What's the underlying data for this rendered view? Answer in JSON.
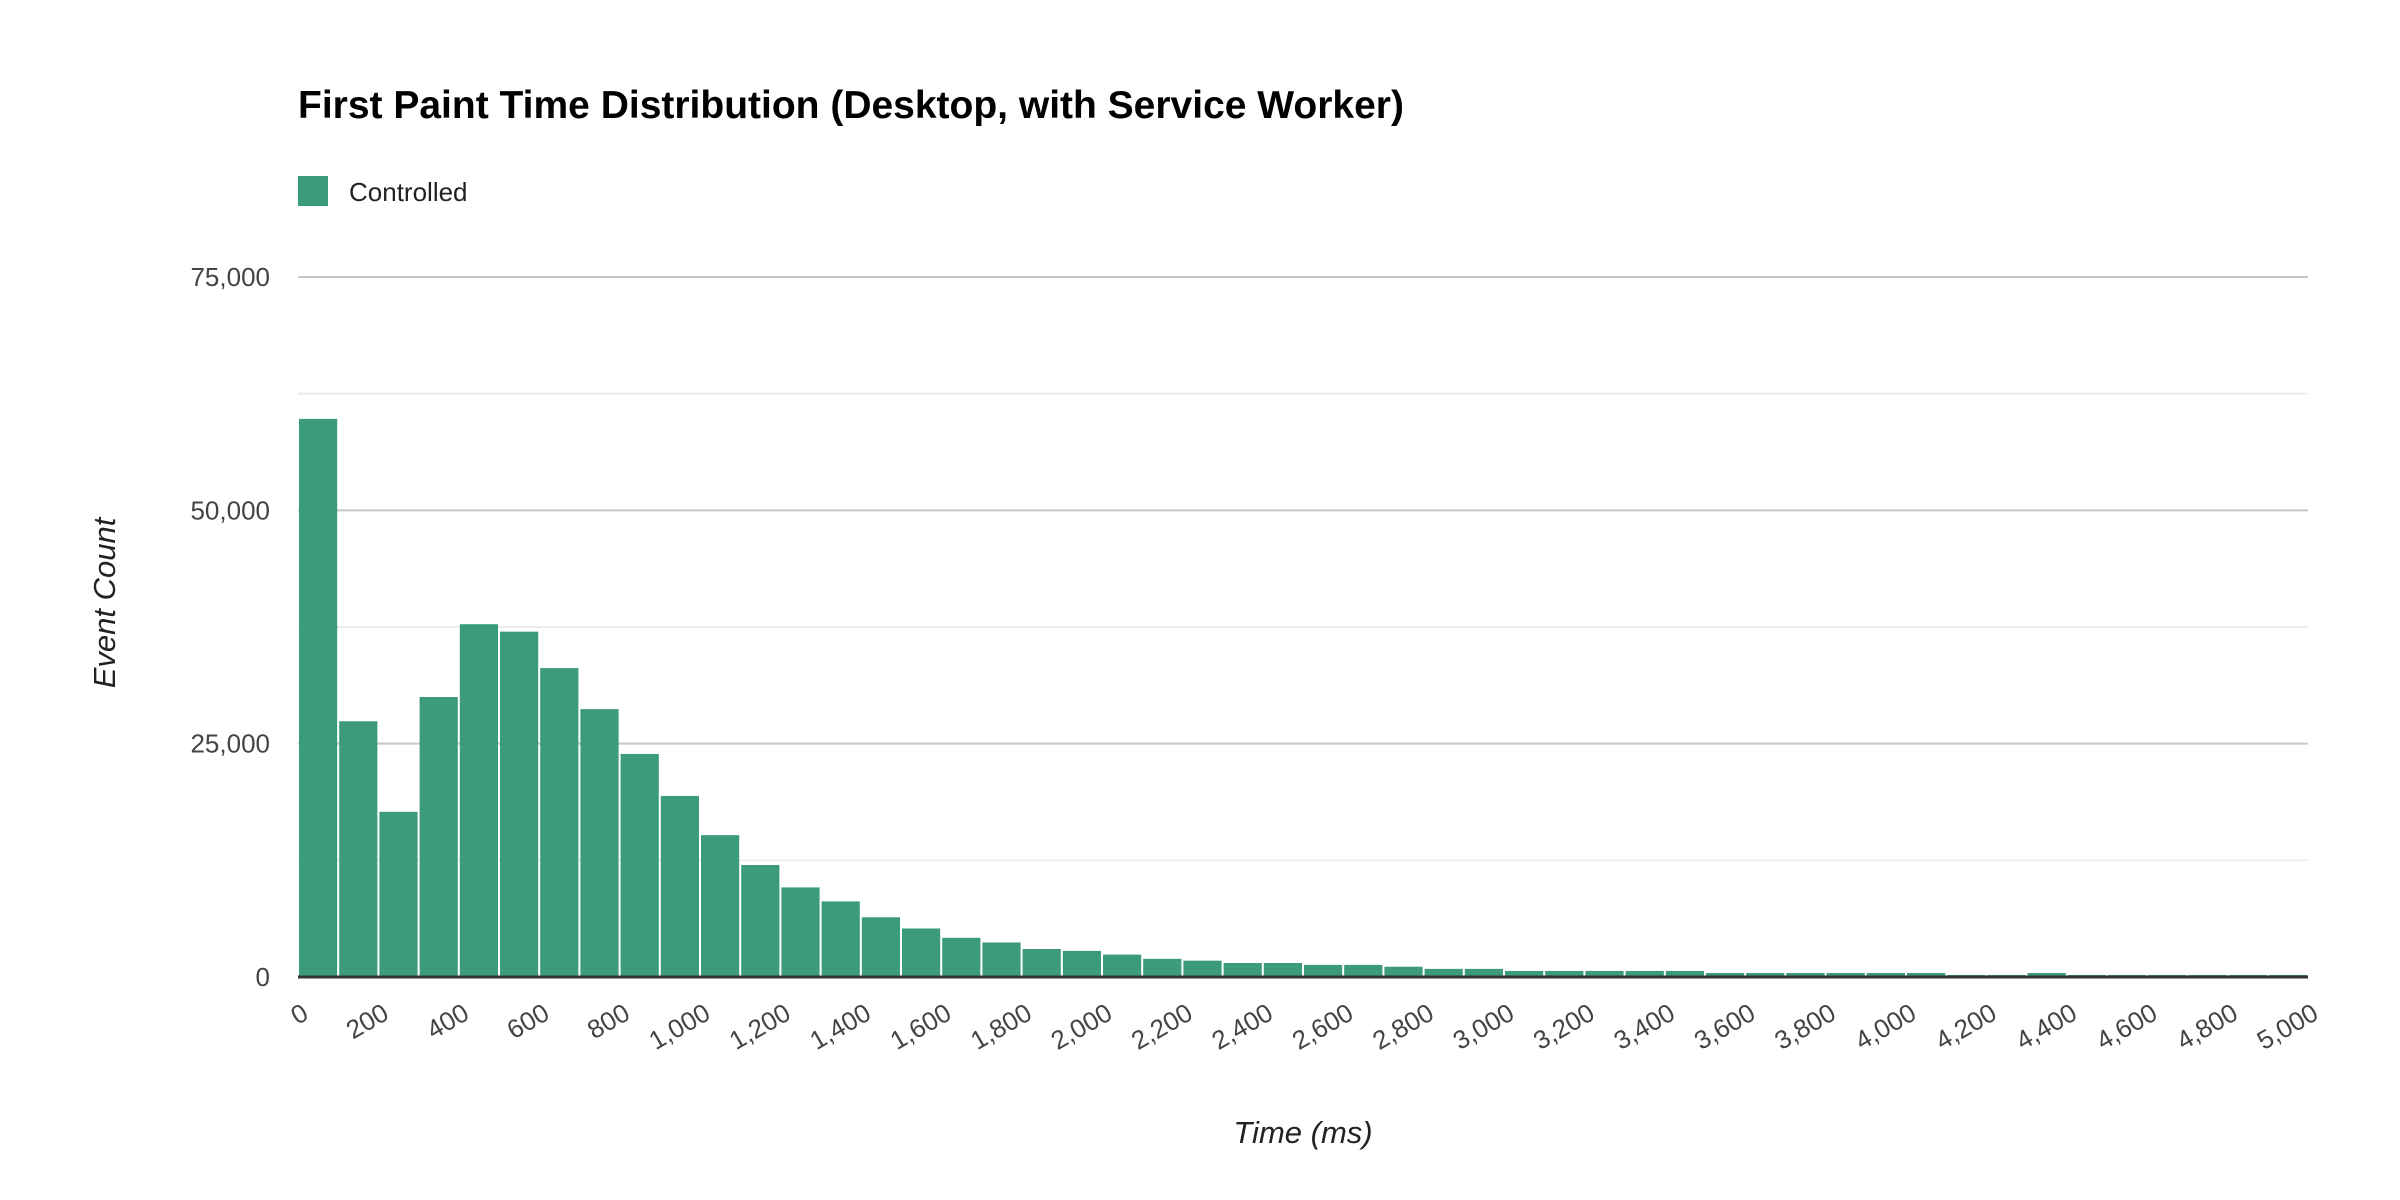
{
  "chart_data": {
    "type": "bar",
    "title": "First Paint Time Distribution (Desktop, with Service Worker)",
    "xlabel": "Time (ms)",
    "ylabel": "Event Count",
    "legend": {
      "position": "top-left",
      "entries": [
        "Controlled"
      ]
    },
    "grid": true,
    "xlim": [
      0,
      5000
    ],
    "ylim": [
      0,
      75000
    ],
    "bin_width": 100,
    "yticks": [
      0,
      25000,
      50000,
      75000
    ],
    "ytick_labels": [
      "0",
      "25,000",
      "50,000",
      "75,000"
    ],
    "xticks": [
      0,
      200,
      400,
      600,
      800,
      1000,
      1200,
      1400,
      1600,
      1800,
      2000,
      2200,
      2400,
      2600,
      2800,
      3000,
      3200,
      3400,
      3600,
      3800,
      4000,
      4200,
      4400,
      4600,
      4800,
      5000
    ],
    "xtick_labels": [
      "0",
      "200",
      "400",
      "600",
      "800",
      "1,000",
      "1,200",
      "1,400",
      "1,600",
      "1,800",
      "2,000",
      "2,200",
      "2,400",
      "2,600",
      "2,800",
      "3,000",
      "3,200",
      "3,400",
      "3,600",
      "3,800",
      "4,000",
      "4,200",
      "4,400",
      "4,600",
      "4,800",
      "5,000"
    ],
    "series": [
      {
        "name": "Controlled",
        "color": "#3c9c7a",
        "bin_starts": [
          0,
          100,
          200,
          300,
          400,
          500,
          600,
          700,
          800,
          900,
          1000,
          1100,
          1200,
          1300,
          1400,
          1500,
          1600,
          1700,
          1800,
          1900,
          2000,
          2100,
          2200,
          2300,
          2400,
          2500,
          2600,
          2700,
          2800,
          2900,
          3000,
          3100,
          3200,
          3300,
          3400,
          3500,
          3600,
          3700,
          3800,
          3900,
          4000,
          4100,
          4200,
          4300,
          4400,
          4500,
          4600,
          4700,
          4800,
          4900
        ],
        "values": [
          59800,
          27400,
          17700,
          30000,
          37800,
          37000,
          33100,
          28700,
          23900,
          19400,
          15200,
          12000,
          9600,
          8100,
          6400,
          5200,
          4200,
          3700,
          3000,
          2800,
          2400,
          1950,
          1750,
          1500,
          1500,
          1300,
          1300,
          1100,
          870,
          870,
          650,
          650,
          650,
          650,
          650,
          430,
          430,
          430,
          430,
          430,
          430,
          220,
          220,
          430,
          220,
          220,
          220,
          220,
          220,
          220
        ]
      }
    ]
  }
}
